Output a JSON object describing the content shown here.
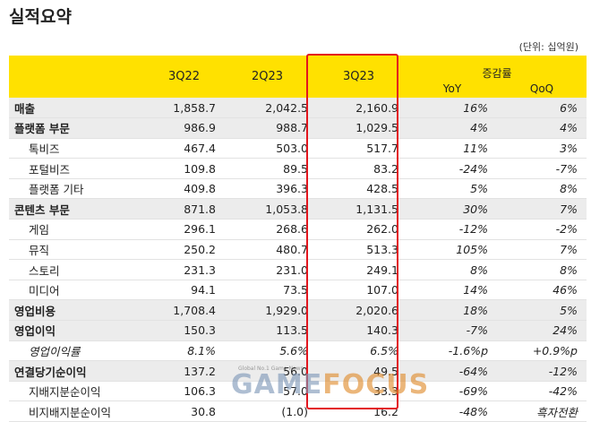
{
  "title": "실적요약",
  "unit": "(단위: 십억원)",
  "header": {
    "q1": "3Q22",
    "q2": "2Q23",
    "q3": "3Q23",
    "change": "증감률",
    "yoy": "YoY",
    "qoq": "QoQ"
  },
  "rows": [
    {
      "label": "매출",
      "q3q22": "1,858.7",
      "q2q23": "2,042.5",
      "q3q23": "2,160.9",
      "yoy": "16%",
      "qoq": "6%"
    },
    {
      "label": "플랫폼 부문",
      "q3q22": "986.9",
      "q2q23": "988.7",
      "q3q23": "1,029.5",
      "yoy": "4%",
      "qoq": "4%"
    },
    {
      "label": "톡비즈",
      "q3q22": "467.4",
      "q2q23": "503.0",
      "q3q23": "517.7",
      "yoy": "11%",
      "qoq": "3%"
    },
    {
      "label": "포털비즈",
      "q3q22": "109.8",
      "q2q23": "89.5",
      "q3q23": "83.2",
      "yoy": "-24%",
      "qoq": "-7%"
    },
    {
      "label": "플랫폼 기타",
      "q3q22": "409.8",
      "q2q23": "396.3",
      "q3q23": "428.5",
      "yoy": "5%",
      "qoq": "8%"
    },
    {
      "label": "콘텐츠 부문",
      "q3q22": "871.8",
      "q2q23": "1,053.8",
      "q3q23": "1,131.5",
      "yoy": "30%",
      "qoq": "7%"
    },
    {
      "label": "게임",
      "q3q22": "296.1",
      "q2q23": "268.6",
      "q3q23": "262.0",
      "yoy": "-12%",
      "qoq": "-2%"
    },
    {
      "label": "뮤직",
      "q3q22": "250.2",
      "q2q23": "480.7",
      "q3q23": "513.3",
      "yoy": "105%",
      "qoq": "7%"
    },
    {
      "label": "스토리",
      "q3q22": "231.3",
      "q2q23": "231.0",
      "q3q23": "249.1",
      "yoy": "8%",
      "qoq": "8%"
    },
    {
      "label": "미디어",
      "q3q22": "94.1",
      "q2q23": "73.5",
      "q3q23": "107.0",
      "yoy": "14%",
      "qoq": "46%"
    },
    {
      "label": "영업비용",
      "q3q22": "1,708.4",
      "q2q23": "1,929.0",
      "q3q23": "2,020.6",
      "yoy": "18%",
      "qoq": "5%"
    },
    {
      "label": "영업이익",
      "q3q22": "150.3",
      "q2q23": "113.5",
      "q3q23": "140.3",
      "yoy": "-7%",
      "qoq": "24%"
    },
    {
      "label": "영업이익률",
      "q3q22": "8.1%",
      "q2q23": "5.6%",
      "q3q23": "6.5%",
      "yoy": "-1.6%p",
      "qoq": "+0.9%p"
    },
    {
      "label": "연결당기순이익",
      "q3q22": "137.2",
      "q2q23": "56.0",
      "q3q23": "49.5",
      "yoy": "-64%",
      "qoq": "-12%"
    },
    {
      "label": "지배지분순이익",
      "q3q22": "106.3",
      "q2q23": "57.0",
      "q3q23": "33.3",
      "yoy": "-69%",
      "qoq": "-42%"
    },
    {
      "label": "비지배지분순이익",
      "q3q22": "30.8",
      "q2q23": "(1.0)",
      "q3q23": "16.2",
      "yoy": "-48%",
      "qoq": "흑자전환"
    }
  ],
  "watermark": {
    "tagline": "Global No.1 Game News",
    "word1": "GAME",
    "word2": "FOCUS"
  },
  "colors": {
    "header_bg": "#ffe100",
    "highlight_box": "#e3161e",
    "group_row_bg": "#ececec"
  }
}
